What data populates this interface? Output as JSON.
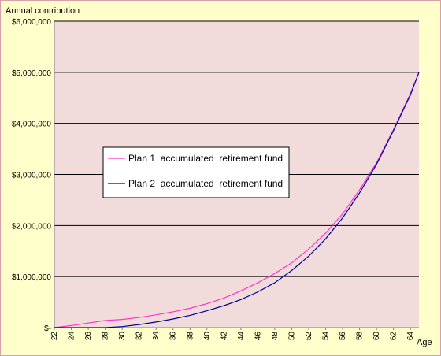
{
  "chart_data": {
    "type": "line",
    "title": "",
    "ylabel": "Annual contribution",
    "xlabel": "Age",
    "ylim": [
      0,
      6000000
    ],
    "xlim": [
      22,
      65
    ],
    "y_ticks": [
      {
        "value": 0,
        "label": "$-"
      },
      {
        "value": 1000000,
        "label": "$1,000,000"
      },
      {
        "value": 2000000,
        "label": "$2,000,000"
      },
      {
        "value": 3000000,
        "label": "$3,000,000"
      },
      {
        "value": 4000000,
        "label": "$4,000,000"
      },
      {
        "value": 5000000,
        "label": "$5,000,000"
      },
      {
        "value": 6000000,
        "label": "$6,000,000"
      }
    ],
    "x_ticks": [
      "22",
      "24",
      "26",
      "28",
      "30",
      "32",
      "34",
      "36",
      "38",
      "40",
      "42",
      "44",
      "46",
      "48",
      "50",
      "52",
      "54",
      "56",
      "58",
      "60",
      "62",
      "64"
    ],
    "grid": true,
    "legend_position": "left-middle",
    "x": [
      22,
      24,
      26,
      28,
      30,
      32,
      34,
      36,
      38,
      40,
      42,
      44,
      46,
      48,
      50,
      52,
      54,
      56,
      58,
      60,
      62,
      64,
      65
    ],
    "series": [
      {
        "name": "Plan 1  accumulated  retirement fund",
        "color": "#ff33cc",
        "values": [
          0,
          40000,
          90000,
          140000,
          160000,
          200000,
          250000,
          310000,
          380000,
          470000,
          580000,
          720000,
          880000,
          1060000,
          1270000,
          1540000,
          1850000,
          2230000,
          2700000,
          3230000,
          3880000,
          4590000,
          5000000
        ]
      },
      {
        "name": "Plan 2  accumulated  retirement fund",
        "color": "#000099",
        "values": [
          0,
          0,
          0,
          0,
          20000,
          60000,
          110000,
          170000,
          240000,
          330000,
          430000,
          550000,
          700000,
          880000,
          1120000,
          1400000,
          1740000,
          2150000,
          2640000,
          3200000,
          3860000,
          4560000,
          5000000
        ]
      }
    ]
  }
}
